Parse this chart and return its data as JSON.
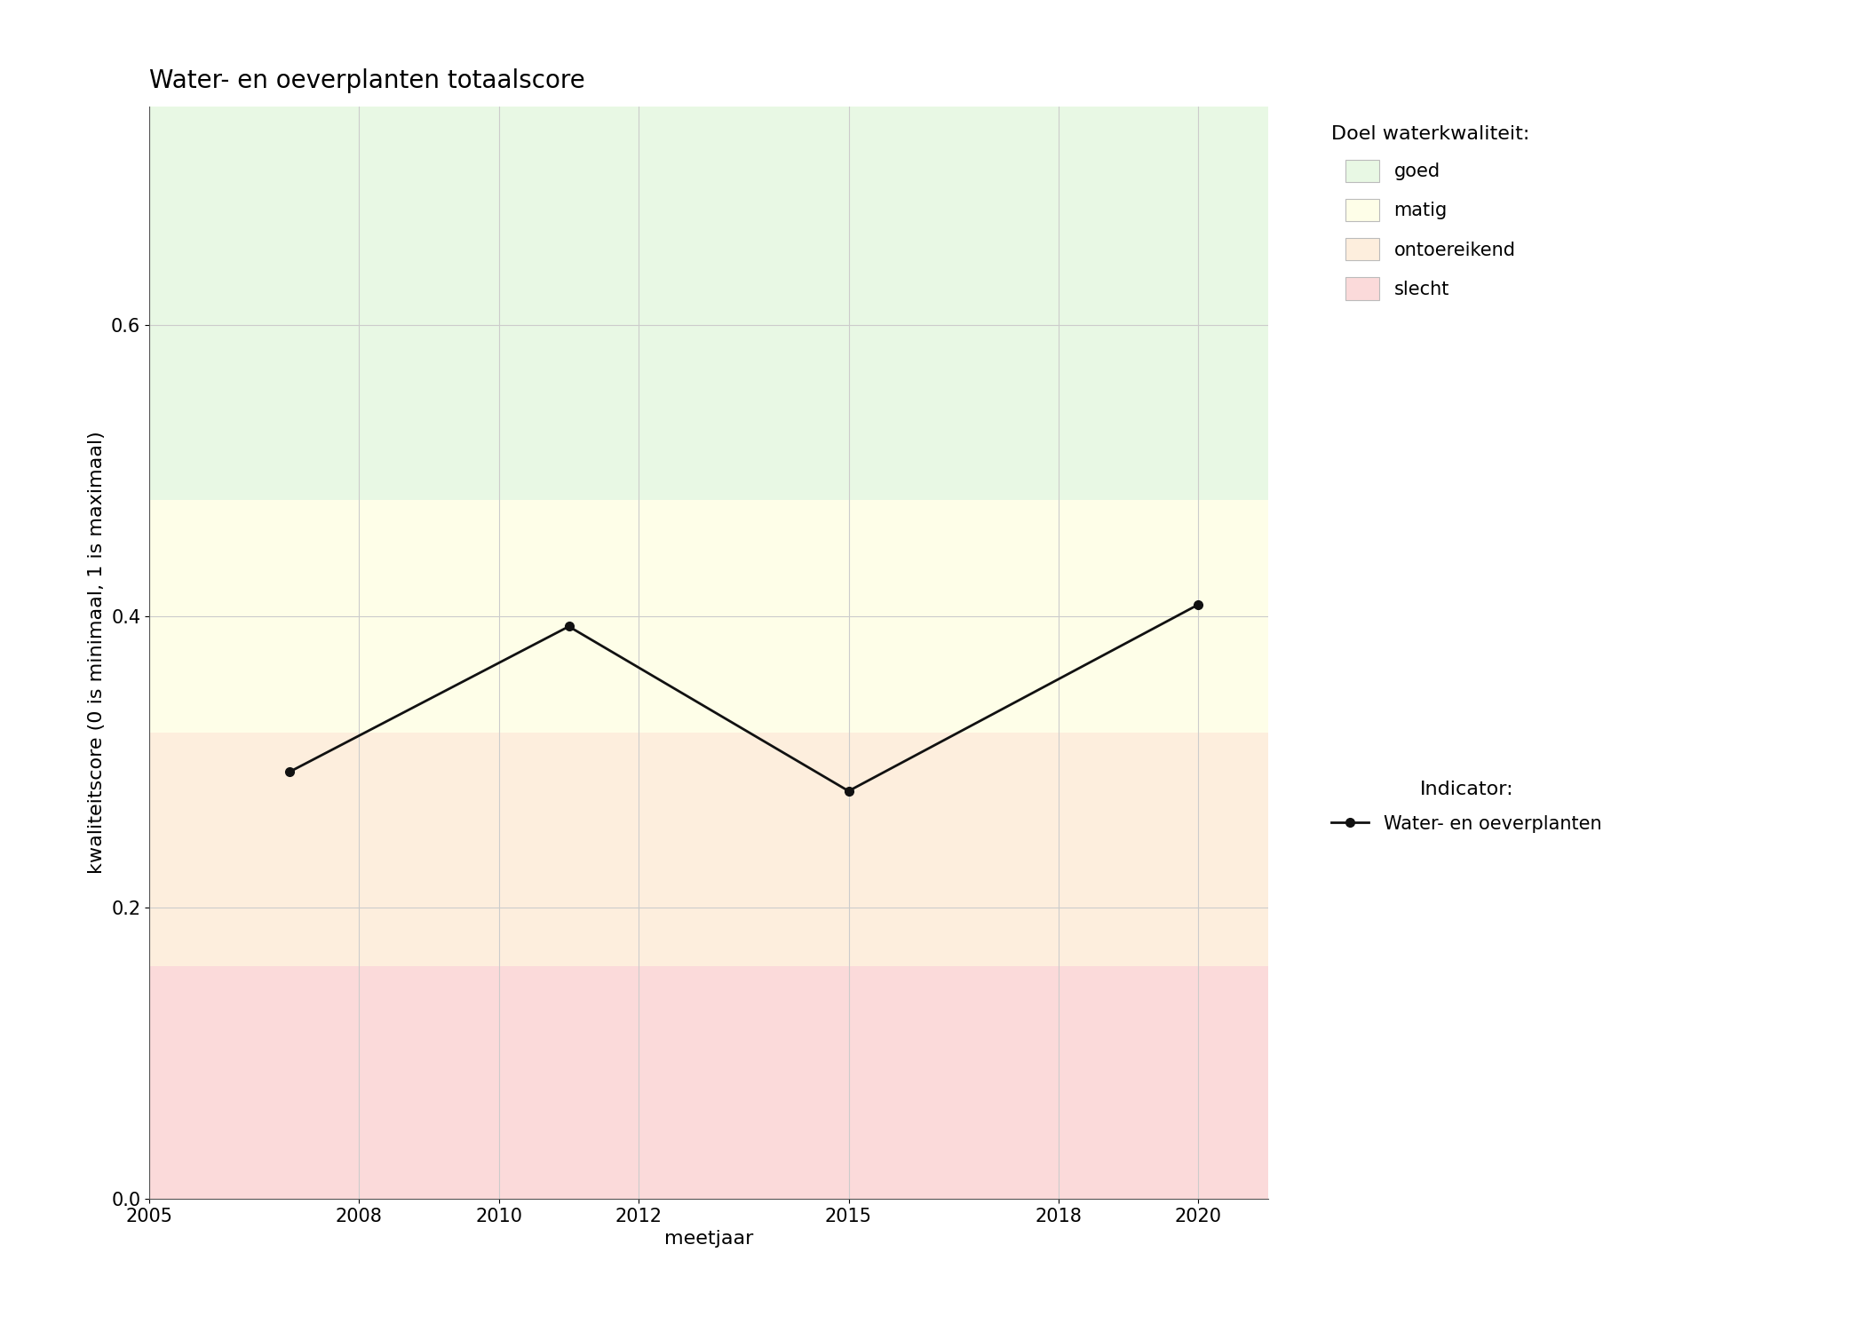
{
  "title": "Water- en oeverplanten totaalscore",
  "xlabel": "meetjaar",
  "ylabel": "kwaliteitscore (0 is minimaal, 1 is maximaal)",
  "xlim": [
    2005,
    2021
  ],
  "ylim": [
    0.0,
    0.75
  ],
  "yticks": [
    0.0,
    0.2,
    0.4,
    0.6
  ],
  "xticks": [
    2005,
    2008,
    2010,
    2012,
    2015,
    2018,
    2020
  ],
  "data_x": [
    2007,
    2011,
    2015,
    2020
  ],
  "data_y": [
    0.293,
    0.393,
    0.28,
    0.408
  ],
  "zones": [
    {
      "ymin": 0.0,
      "ymax": 0.16,
      "color": "#FBDADA",
      "label": "slecht"
    },
    {
      "ymin": 0.16,
      "ymax": 0.32,
      "color": "#FDEEDD",
      "label": "ontoereikend"
    },
    {
      "ymin": 0.32,
      "ymax": 0.48,
      "color": "#FEFEE8",
      "label": "matig"
    },
    {
      "ymin": 0.48,
      "ymax": 0.75,
      "color": "#E8F8E4",
      "label": "goed"
    }
  ],
  "line_color": "#111111",
  "marker": "o",
  "marker_size": 7,
  "line_width": 2.0,
  "legend_title_quality": "Doel waterkwaliteit:",
  "legend_title_indicator": "Indicator:",
  "legend_label_indicator": "Water- en oeverplanten",
  "grid_color": "#cccccc",
  "background_color": "#ffffff",
  "title_fontsize": 20,
  "label_fontsize": 16,
  "tick_fontsize": 15,
  "legend_fontsize": 15
}
